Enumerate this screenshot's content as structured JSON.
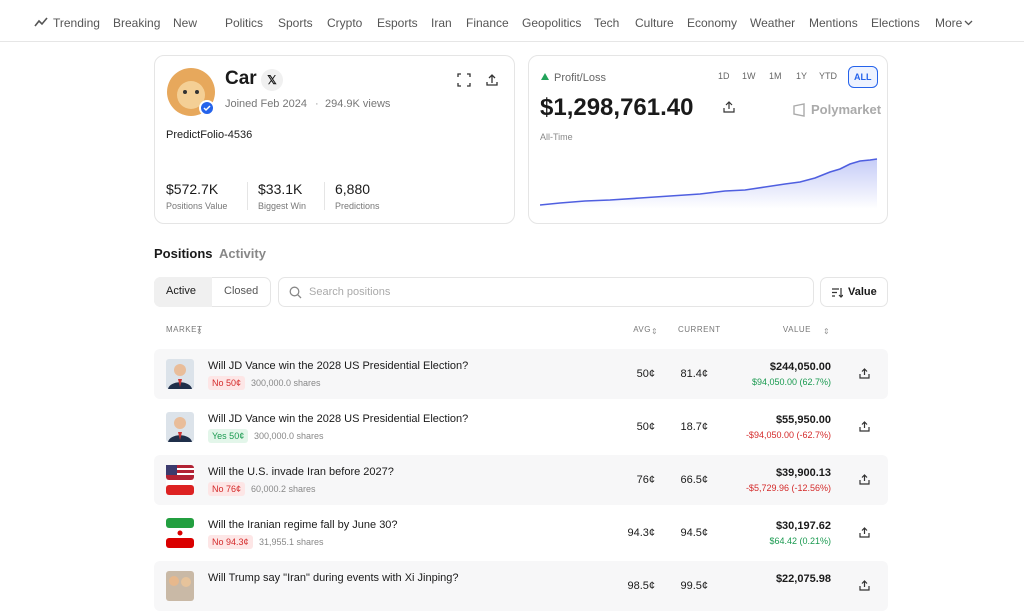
{
  "nav": {
    "items": [
      "Trending",
      "Breaking",
      "New",
      "Politics",
      "Sports",
      "Crypto",
      "Esports",
      "Iran",
      "Finance",
      "Geopolitics",
      "Tech",
      "Culture",
      "Economy",
      "Weather",
      "Mentions",
      "Elections",
      "More"
    ]
  },
  "profile": {
    "name": "Car",
    "joined": "Joined Feb 2024",
    "views": "294.9K views",
    "handle": "PredictFolio-4536",
    "stats": [
      {
        "value": "$572.7K",
        "label": "Positions Value"
      },
      {
        "value": "$33.1K",
        "label": "Biggest Win"
      },
      {
        "value": "6,880",
        "label": "Predictions"
      }
    ]
  },
  "pnl": {
    "label": "Profit/Loss",
    "ranges": [
      "1D",
      "1W",
      "1M",
      "1Y",
      "YTD",
      "ALL"
    ],
    "amount": "$1,298,761.40",
    "brand": "Polymarket",
    "period": "All-Time"
  },
  "tabs": [
    "Positions",
    "Activity"
  ],
  "filters": [
    "Active",
    "Closed"
  ],
  "search": "Search positions",
  "sort": "Value",
  "columns": [
    "MARKET",
    "AVG",
    "CURRENT",
    "VALUE"
  ],
  "rows": [
    {
      "title": "Will JD Vance win the 2028 US Presidential Election?",
      "outcome": "No 50¢",
      "shares": "300,000.0 shares",
      "avg": "50¢",
      "current": "81.4¢",
      "value": "$244,050.00",
      "change": "$94,050.00 (62.7%)"
    },
    {
      "title": "Will JD Vance win the 2028 US Presidential Election?",
      "outcome": "Yes 50¢",
      "shares": "300,000.0 shares",
      "avg": "50¢",
      "current": "18.7¢",
      "value": "$55,950.00",
      "change": "-$94,050.00 (-62.7%)"
    },
    {
      "title": "Will the U.S. invade Iran before 2027?",
      "outcome": "No 76¢",
      "shares": "60,000.2 shares",
      "avg": "76¢",
      "current": "66.5¢",
      "value": "$39,900.13",
      "change": "-$5,729.96 (-12.56%)"
    },
    {
      "title": "Will the Iranian regime fall by June 30?",
      "outcome": "No 94.3¢",
      "shares": "31,955.1 shares",
      "avg": "94.3¢",
      "current": "94.5¢",
      "value": "$30,197.62",
      "change": "$64.42 (0.21%)"
    },
    {
      "title": "Will Trump say \"Iran\" during events with Xi Jinping?",
      "avg": "98.5¢",
      "current": "99.5¢",
      "value": "$22,075.98"
    }
  ]
}
